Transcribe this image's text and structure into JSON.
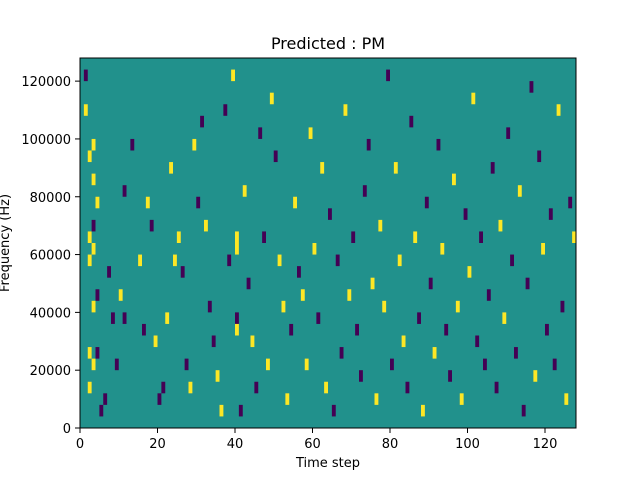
{
  "chart_data": {
    "type": "heatmap",
    "title": "Predicted : PM",
    "xlabel": "Time step",
    "ylabel": "Frequency (Hz)",
    "xlim": [
      0,
      128
    ],
    "ylim": [
      0,
      128000
    ],
    "x_ticks": [
      0,
      20,
      40,
      60,
      80,
      100,
      120
    ],
    "y_ticks": [
      0,
      20000,
      40000,
      60000,
      80000,
      100000,
      120000
    ],
    "grid": false,
    "value_levels": {
      "negative": -1,
      "neutral": 0,
      "positive": 1
    },
    "colors": {
      "background": "#21918c",
      "positive": "#fde725",
      "negative": "#440154"
    },
    "cell_size": {
      "time_steps": 1,
      "hz": 4000
    },
    "cells": [
      [
        1,
        120000,
        -1
      ],
      [
        1,
        108000,
        1
      ],
      [
        2,
        92000,
        1
      ],
      [
        2,
        64000,
        1
      ],
      [
        2,
        56000,
        1
      ],
      [
        2,
        24000,
        1
      ],
      [
        2,
        12000,
        1
      ],
      [
        3,
        96000,
        1
      ],
      [
        3,
        84000,
        1
      ],
      [
        3,
        68000,
        -1
      ],
      [
        3,
        60000,
        1
      ],
      [
        3,
        40000,
        1
      ],
      [
        3,
        20000,
        1
      ],
      [
        4,
        76000,
        1
      ],
      [
        4,
        44000,
        -1
      ],
      [
        4,
        24000,
        -1
      ],
      [
        5,
        4000,
        -1
      ],
      [
        6,
        8000,
        -1
      ],
      [
        7,
        52000,
        -1
      ],
      [
        8,
        36000,
        -1
      ],
      [
        9,
        20000,
        -1
      ],
      [
        10,
        44000,
        1
      ],
      [
        11,
        80000,
        -1
      ],
      [
        11,
        36000,
        -1
      ],
      [
        13,
        96000,
        -1
      ],
      [
        15,
        56000,
        1
      ],
      [
        16,
        32000,
        -1
      ],
      [
        17,
        76000,
        1
      ],
      [
        18,
        68000,
        -1
      ],
      [
        19,
        28000,
        1
      ],
      [
        20,
        8000,
        -1
      ],
      [
        21,
        12000,
        -1
      ],
      [
        22,
        36000,
        1
      ],
      [
        23,
        88000,
        1
      ],
      [
        24,
        56000,
        1
      ],
      [
        25,
        64000,
        1
      ],
      [
        26,
        52000,
        -1
      ],
      [
        27,
        20000,
        -1
      ],
      [
        28,
        12000,
        1
      ],
      [
        29,
        96000,
        1
      ],
      [
        30,
        76000,
        -1
      ],
      [
        31,
        104000,
        -1
      ],
      [
        32,
        68000,
        1
      ],
      [
        33,
        40000,
        -1
      ],
      [
        34,
        28000,
        -1
      ],
      [
        35,
        16000,
        1
      ],
      [
        36,
        4000,
        1
      ],
      [
        37,
        108000,
        -1
      ],
      [
        38,
        56000,
        -1
      ],
      [
        39,
        120000,
        1
      ],
      [
        40,
        64000,
        1
      ],
      [
        40,
        60000,
        1
      ],
      [
        40,
        36000,
        -1
      ],
      [
        40,
        32000,
        1
      ],
      [
        41,
        4000,
        -1
      ],
      [
        42,
        80000,
        1
      ],
      [
        43,
        48000,
        -1
      ],
      [
        44,
        28000,
        1
      ],
      [
        45,
        12000,
        -1
      ],
      [
        46,
        100000,
        -1
      ],
      [
        47,
        64000,
        -1
      ],
      [
        48,
        20000,
        1
      ],
      [
        49,
        112000,
        1
      ],
      [
        50,
        92000,
        -1
      ],
      [
        51,
        56000,
        1
      ],
      [
        52,
        40000,
        1
      ],
      [
        53,
        8000,
        1
      ],
      [
        54,
        32000,
        -1
      ],
      [
        55,
        76000,
        1
      ],
      [
        56,
        52000,
        -1
      ],
      [
        57,
        44000,
        1
      ],
      [
        58,
        20000,
        1
      ],
      [
        59,
        100000,
        1
      ],
      [
        60,
        60000,
        1
      ],
      [
        61,
        36000,
        -1
      ],
      [
        62,
        88000,
        1
      ],
      [
        63,
        12000,
        1
      ],
      [
        64,
        72000,
        -1
      ],
      [
        65,
        4000,
        -1
      ],
      [
        66,
        56000,
        -1
      ],
      [
        67,
        24000,
        -1
      ],
      [
        68,
        108000,
        1
      ],
      [
        69,
        44000,
        1
      ],
      [
        70,
        64000,
        -1
      ],
      [
        71,
        32000,
        -1
      ],
      [
        72,
        16000,
        -1
      ],
      [
        73,
        80000,
        -1
      ],
      [
        74,
        96000,
        -1
      ],
      [
        75,
        48000,
        1
      ],
      [
        76,
        8000,
        1
      ],
      [
        77,
        68000,
        1
      ],
      [
        78,
        40000,
        1
      ],
      [
        79,
        120000,
        -1
      ],
      [
        80,
        20000,
        -1
      ],
      [
        81,
        88000,
        1
      ],
      [
        82,
        56000,
        1
      ],
      [
        83,
        28000,
        1
      ],
      [
        84,
        12000,
        -1
      ],
      [
        85,
        104000,
        -1
      ],
      [
        86,
        64000,
        1
      ],
      [
        87,
        36000,
        -1
      ],
      [
        88,
        4000,
        1
      ],
      [
        89,
        76000,
        -1
      ],
      [
        90,
        48000,
        -1
      ],
      [
        91,
        24000,
        1
      ],
      [
        92,
        96000,
        -1
      ],
      [
        93,
        60000,
        1
      ],
      [
        94,
        32000,
        -1
      ],
      [
        95,
        16000,
        -1
      ],
      [
        96,
        84000,
        1
      ],
      [
        97,
        40000,
        1
      ],
      [
        98,
        8000,
        1
      ],
      [
        99,
        72000,
        -1
      ],
      [
        100,
        52000,
        1
      ],
      [
        101,
        112000,
        1
      ],
      [
        102,
        28000,
        -1
      ],
      [
        103,
        64000,
        -1
      ],
      [
        104,
        20000,
        -1
      ],
      [
        105,
        44000,
        -1
      ],
      [
        106,
        88000,
        -1
      ],
      [
        107,
        12000,
        -1
      ],
      [
        108,
        68000,
        1
      ],
      [
        109,
        36000,
        1
      ],
      [
        110,
        100000,
        -1
      ],
      [
        111,
        56000,
        -1
      ],
      [
        112,
        24000,
        -1
      ],
      [
        113,
        80000,
        1
      ],
      [
        114,
        4000,
        -1
      ],
      [
        115,
        48000,
        -1
      ],
      [
        116,
        116000,
        -1
      ],
      [
        117,
        16000,
        1
      ],
      [
        118,
        92000,
        -1
      ],
      [
        119,
        60000,
        1
      ],
      [
        120,
        32000,
        -1
      ],
      [
        121,
        72000,
        -1
      ],
      [
        122,
        20000,
        -1
      ],
      [
        123,
        108000,
        1
      ],
      [
        124,
        40000,
        -1
      ],
      [
        125,
        8000,
        1
      ],
      [
        126,
        76000,
        -1
      ],
      [
        127,
        64000,
        1
      ]
    ]
  }
}
